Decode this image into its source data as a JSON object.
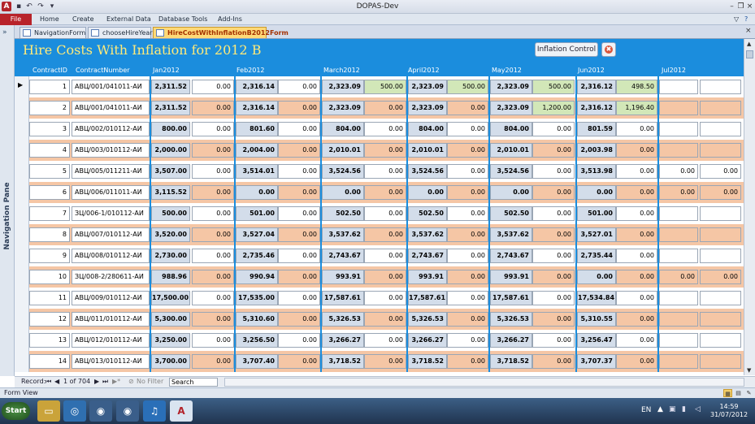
{
  "window": {
    "title": "DOPAS-Dev"
  },
  "appicon": "A",
  "ribbon": {
    "file": "File",
    "tabs": [
      "Home",
      "Create",
      "External Data",
      "Database Tools",
      "Add-Ins"
    ]
  },
  "nav": {
    "label": "Navigation Pane",
    "chevron": "»"
  },
  "doctabs": [
    {
      "label": "NavigationForm"
    },
    {
      "label": "chooseHireYear"
    },
    {
      "label": "HireCostWithInflationB2012Form"
    }
  ],
  "form": {
    "title": "Hire Costs With Inflation for 2012 B",
    "inflation_button": "Inflation Control",
    "close_icon": "✖"
  },
  "columns": [
    "ContractID",
    "ContractNumber",
    "Jan2012",
    "Feb2012",
    "March2012",
    "April2012",
    "May2012",
    "Jun2012",
    "Jul2012"
  ],
  "rows": [
    {
      "id": "1",
      "num": "АВЦ/001/041011-АИ",
      "v": [
        "2,311.52",
        "0.00",
        "2,316.14",
        "0.00",
        "2,323.09",
        "500.00",
        "2,323.09",
        "500.00",
        "2,323.09",
        "500.00",
        "2,316.12",
        "498.50",
        "",
        ""
      ]
    },
    {
      "id": "2",
      "num": "АВЦ/001/041011-АИ",
      "v": [
        "2,311.52",
        "0.00",
        "2,316.14",
        "0.00",
        "2,323.09",
        "0.00",
        "2,323.09",
        "0.00",
        "2,323.09",
        "1,200.00",
        "2,316.12",
        "1,196.40",
        "",
        ""
      ]
    },
    {
      "id": "3",
      "num": "АВЦ/002/010112-АИ",
      "v": [
        "800.00",
        "0.00",
        "801.60",
        "0.00",
        "804.00",
        "0.00",
        "804.00",
        "0.00",
        "804.00",
        "0.00",
        "801.59",
        "0.00",
        "",
        ""
      ]
    },
    {
      "id": "4",
      "num": "АВЦ/003/010112-АИ",
      "v": [
        "2,000.00",
        "0.00",
        "2,004.00",
        "0.00",
        "2,010.01",
        "0.00",
        "2,010.01",
        "0.00",
        "2,010.01",
        "0.00",
        "2,003.98",
        "0.00",
        "",
        ""
      ]
    },
    {
      "id": "5",
      "num": "АВЦ/005/011211-АИ",
      "v": [
        "3,507.00",
        "0.00",
        "3,514.01",
        "0.00",
        "3,524.56",
        "0.00",
        "3,524.56",
        "0.00",
        "3,524.56",
        "0.00",
        "3,513.98",
        "0.00",
        "0.00",
        "0.00"
      ]
    },
    {
      "id": "6",
      "num": "АВЦ/006/011011-АИ",
      "v": [
        "3,115.52",
        "0.00",
        "0.00",
        "0.00",
        "0.00",
        "0.00",
        "0.00",
        "0.00",
        "0.00",
        "0.00",
        "0.00",
        "0.00",
        "0.00",
        "0.00"
      ]
    },
    {
      "id": "7",
      "num": "ЗЦ/006-1/010112-АИ",
      "v": [
        "500.00",
        "0.00",
        "501.00",
        "0.00",
        "502.50",
        "0.00",
        "502.50",
        "0.00",
        "502.50",
        "0.00",
        "501.00",
        "0.00",
        "",
        ""
      ]
    },
    {
      "id": "8",
      "num": "АВЦ/007/010112-АИ",
      "v": [
        "3,520.00",
        "0.00",
        "3,527.04",
        "0.00",
        "3,537.62",
        "0.00",
        "3,537.62",
        "0.00",
        "3,537.62",
        "0.00",
        "3,527.01",
        "0.00",
        "",
        ""
      ]
    },
    {
      "id": "9",
      "num": "АВЦ/008/010112-АИ",
      "v": [
        "2,730.00",
        "0.00",
        "2,735.46",
        "0.00",
        "2,743.67",
        "0.00",
        "2,743.67",
        "0.00",
        "2,743.67",
        "0.00",
        "2,735.44",
        "0.00",
        "",
        ""
      ]
    },
    {
      "id": "10",
      "num": "ЗЦ/008-2/280611-АИ",
      "v": [
        "988.96",
        "0.00",
        "990.94",
        "0.00",
        "993.91",
        "0.00",
        "993.91",
        "0.00",
        "993.91",
        "0.00",
        "0.00",
        "0.00",
        "0.00",
        "0.00"
      ]
    },
    {
      "id": "11",
      "num": "АВЦ/009/010112-АИ",
      "v": [
        "17,500.00",
        "0.00",
        "17,535.00",
        "0.00",
        "17,587.61",
        "0.00",
        "17,587.61",
        "0.00",
        "17,587.61",
        "0.00",
        "17,534.84",
        "0.00",
        "",
        ""
      ]
    },
    {
      "id": "12",
      "num": "АВЦ/011/010112-АИ",
      "v": [
        "5,300.00",
        "0.00",
        "5,310.60",
        "0.00",
        "5,326.53",
        "0.00",
        "5,326.53",
        "0.00",
        "5,326.53",
        "0.00",
        "5,310.55",
        "0.00",
        "",
        ""
      ]
    },
    {
      "id": "13",
      "num": "АВЦ/012/010112-АИ",
      "v": [
        "3,250.00",
        "0.00",
        "3,256.50",
        "0.00",
        "3,266.27",
        "0.00",
        "3,266.27",
        "0.00",
        "3,266.27",
        "0.00",
        "3,256.47",
        "0.00",
        "",
        ""
      ]
    },
    {
      "id": "14",
      "num": "АВЦ/013/010112-АИ",
      "v": [
        "3,700.00",
        "0.00",
        "3,707.40",
        "0.00",
        "3,718.52",
        "0.00",
        "3,718.52",
        "0.00",
        "3,718.52",
        "0.00",
        "3,707.37",
        "0.00",
        "",
        ""
      ]
    }
  ],
  "green_cells": [
    [
      0,
      5
    ],
    [
      0,
      7
    ],
    [
      0,
      9
    ],
    [
      0,
      11
    ],
    [
      1,
      9
    ],
    [
      1,
      11
    ]
  ],
  "record_nav": {
    "label": "Record:",
    "first": "⏮",
    "prev": "◀",
    "position": "1 of 704",
    "next": "▶",
    "last": "⏭",
    "new": "▶*",
    "filter": "No Filter",
    "search": "Search"
  },
  "statusbar": {
    "text": "Form View"
  },
  "taskbar": {
    "start": "Start",
    "lang": "EN",
    "time": "14:59",
    "date": "31/07/2012"
  },
  "colors": {
    "header_blue": "#1b8ddd",
    "title_yellow": "#ffea7a",
    "row_alt": "#f5c6a5",
    "green_cell": "#d2e7b8"
  }
}
